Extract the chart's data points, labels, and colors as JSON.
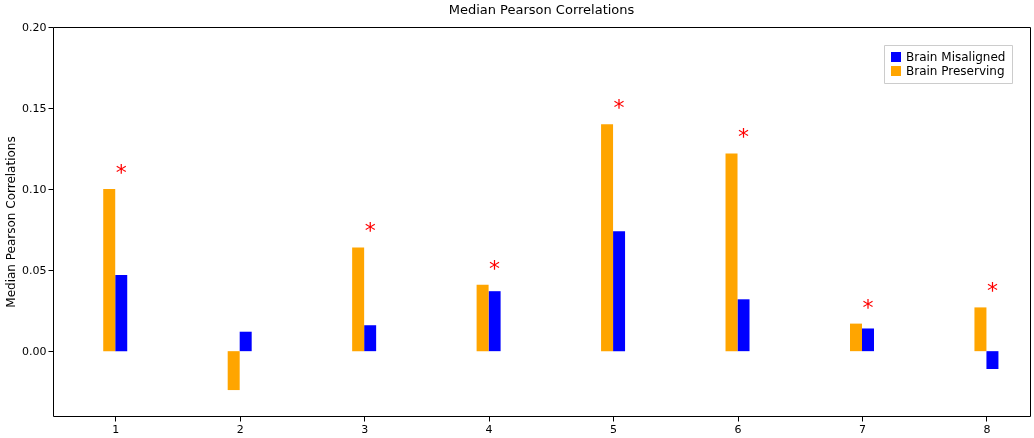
{
  "chart_data": {
    "type": "bar",
    "title": "Median Pearson Correlations",
    "ylabel": "Median Pearson Correlations",
    "x": [
      1,
      2,
      3,
      4,
      5,
      6,
      7,
      8
    ],
    "series": [
      {
        "name": "Brain Misaligned",
        "color": "#0000ff",
        "values": [
          0.047,
          0.012,
          0.016,
          0.037,
          0.074,
          0.032,
          0.014,
          -0.011
        ]
      },
      {
        "name": "Brain Preserving",
        "color": "#ffa500",
        "values": [
          0.1,
          -0.024,
          0.064,
          0.041,
          0.14,
          0.122,
          0.017,
          0.027
        ]
      }
    ],
    "xlim": [
      0.5,
      8.35
    ],
    "xticks": [
      1,
      2,
      3,
      4,
      5,
      6,
      7,
      8
    ],
    "ylim": [
      -0.04,
      0.2
    ],
    "yticks": [
      {
        "value": 0,
        "label": "0.00"
      },
      0.05,
      {
        "value": 0.1,
        "label": "0.10"
      },
      0.15,
      {
        "value": 0.2,
        "label": "0.20"
      }
    ],
    "annotations": [
      {
        "text": "*",
        "x": 1,
        "y": 0.1
      },
      {
        "text": "*",
        "x": 3,
        "y": 0.064
      },
      {
        "text": "*",
        "x": 4,
        "y": 0.041
      },
      {
        "text": "*",
        "x": 5,
        "y": 0.14
      },
      {
        "text": "*",
        "x": 6,
        "y": 0.122
      },
      {
        "text": "*",
        "x": 7,
        "y": 0.017
      },
      {
        "text": "*",
        "x": 8,
        "y": 0.027
      }
    ],
    "legend": "top right",
    "grid": false
  }
}
